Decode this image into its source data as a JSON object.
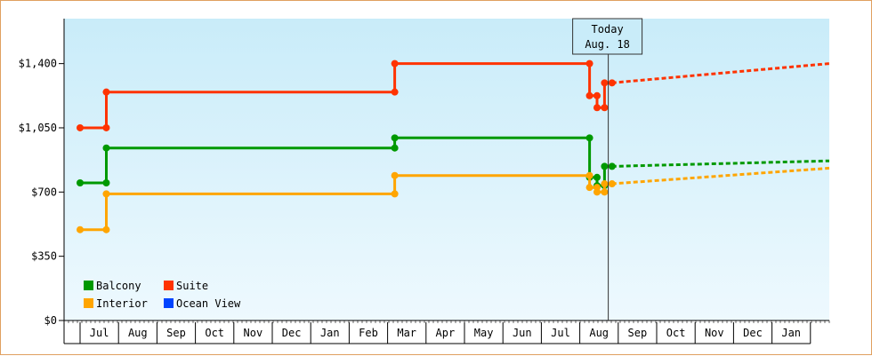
{
  "chart_data": {
    "type": "line",
    "title": "",
    "xlabel": "",
    "ylabel": "",
    "y_tick_labels": [
      "$0",
      "$350",
      "$700",
      "$1,050",
      "$1,400"
    ],
    "y_ticks": [
      0,
      350,
      700,
      1050,
      1400
    ],
    "ylim": [
      0,
      1645
    ],
    "x_tick_labels": [
      "Jul",
      "Aug",
      "Sep",
      "Oct",
      "Nov",
      "Dec",
      "Jan",
      "Feb",
      "Mar",
      "Apr",
      "May",
      "Jun",
      "Jul",
      "Aug",
      "Sep",
      "Oct",
      "Nov",
      "Dec",
      "Jan"
    ],
    "xlim": [
      0,
      20
    ],
    "today": {
      "label": "Today",
      "date": "Aug. 18",
      "x": 14.1
    },
    "legend": {
      "position": "bottom-left"
    },
    "grid": false,
    "series": [
      {
        "name": "Balcony",
        "color": "#009900",
        "points": [
          [
            0,
            750
          ],
          [
            0.7,
            750
          ],
          [
            0.7,
            940
          ],
          [
            8.4,
            940
          ],
          [
            8.4,
            995
          ],
          [
            13.6,
            995
          ],
          [
            13.6,
            780
          ],
          [
            13.8,
            780
          ],
          [
            13.8,
            735
          ],
          [
            14.0,
            735
          ],
          [
            14.0,
            840
          ],
          [
            14.2,
            840
          ]
        ],
        "forecast": [
          [
            14.2,
            840
          ],
          [
            20,
            870
          ]
        ]
      },
      {
        "name": "Suite",
        "color": "#ff3300",
        "points": [
          [
            0,
            1050
          ],
          [
            0.7,
            1050
          ],
          [
            0.7,
            1245
          ],
          [
            8.4,
            1245
          ],
          [
            8.4,
            1400
          ],
          [
            13.6,
            1400
          ],
          [
            13.6,
            1225
          ],
          [
            13.8,
            1225
          ],
          [
            13.8,
            1160
          ],
          [
            14.0,
            1160
          ],
          [
            14.0,
            1295
          ],
          [
            14.2,
            1295
          ]
        ],
        "forecast": [
          [
            14.2,
            1295
          ],
          [
            20,
            1400
          ]
        ]
      },
      {
        "name": "Interior",
        "color": "#ffa500",
        "points": [
          [
            0,
            495
          ],
          [
            0.7,
            495
          ],
          [
            0.7,
            690
          ],
          [
            8.4,
            690
          ],
          [
            8.4,
            790
          ],
          [
            13.6,
            790
          ],
          [
            13.6,
            725
          ],
          [
            13.8,
            725
          ],
          [
            13.8,
            700
          ],
          [
            14.0,
            700
          ],
          [
            14.0,
            745
          ],
          [
            14.2,
            745
          ]
        ],
        "forecast": [
          [
            14.2,
            745
          ],
          [
            20,
            830
          ]
        ]
      },
      {
        "name": "Ocean View",
        "color": "#0044ff",
        "points": [],
        "forecast": []
      }
    ]
  }
}
